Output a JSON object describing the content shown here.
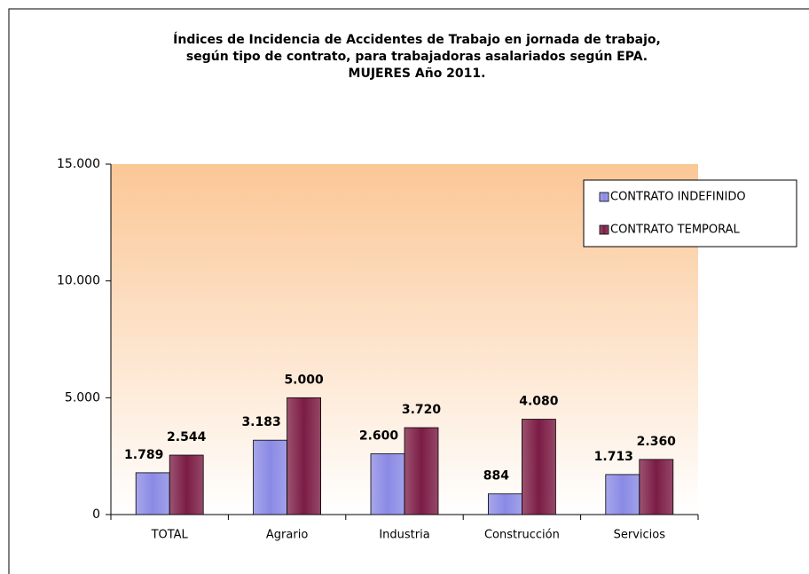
{
  "chart_data": {
    "type": "bar",
    "title": [
      "Índices de Incidencia de Accidentes de Trabajo en jornada de trabajo,",
      "según tipo de contrato, para trabajadoras asalariados según EPA.",
      "MUJERES Año 2011."
    ],
    "categories": [
      "TOTAL",
      "Agrario",
      "Industria",
      "Construcción",
      "Servicios"
    ],
    "series": [
      {
        "name": "CONTRATO INDEFINIDO",
        "color": "#8a8ae6",
        "values": [
          1789,
          3183,
          2600,
          884,
          1713
        ],
        "value_labels": [
          "1.789",
          "3.183",
          "2.600",
          "884",
          "1.713"
        ]
      },
      {
        "name": "CONTRATO TEMPORAL",
        "color": "#7b1c45",
        "values": [
          2544,
          5000,
          3720,
          4080,
          2360
        ],
        "value_labels": [
          "2.544",
          "5.000",
          "3.720",
          "4.080",
          "2.360"
        ]
      }
    ],
    "ylim": [
      0,
      15000
    ],
    "yticks": [
      0,
      {
        "value": 5000,
        "label": "5.000"
      },
      {
        "value": 10000,
        "label": "10.000"
      },
      {
        "value": 15000,
        "label": "15.000"
      }
    ],
    "legend": "upper right"
  }
}
